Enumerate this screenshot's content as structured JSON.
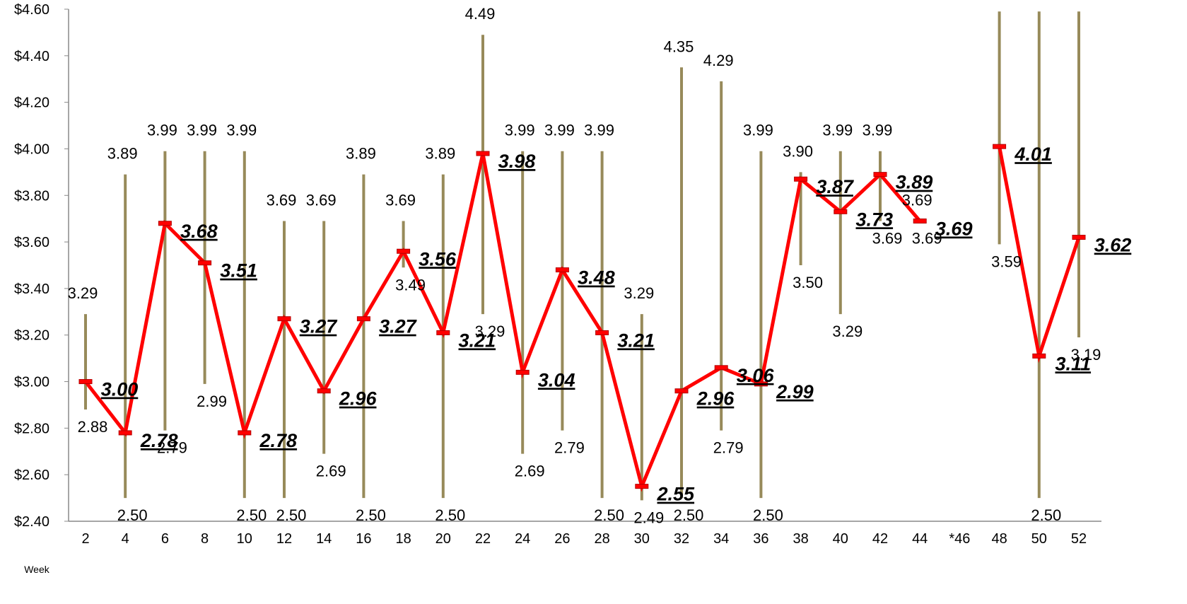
{
  "chart_data": {
    "type": "line",
    "xlabel": "Week",
    "ylabel": "",
    "ylim": [
      2.4,
      4.6
    ],
    "y_tick_step": 0.2,
    "y_tick_prefix": "$",
    "grid": false,
    "categories": [
      "2",
      "4",
      "6",
      "8",
      "10",
      "12",
      "14",
      "16",
      "18",
      "20",
      "22",
      "24",
      "26",
      "28",
      "30",
      "32",
      "34",
      "36",
      "38",
      "40",
      "42",
      "44",
      "*46",
      "48",
      "50",
      "52"
    ],
    "series": [
      {
        "values": [
          3.0,
          2.78,
          3.68,
          3.51,
          2.78,
          3.27,
          2.96,
          3.27,
          3.56,
          3.21,
          3.98,
          3.04,
          3.48,
          3.21,
          2.55,
          2.96,
          3.06,
          2.99,
          3.87,
          3.73,
          3.89,
          3.69,
          null,
          4.01,
          3.11,
          3.62
        ],
        "labels": [
          "3.00",
          "2.78",
          "3.68",
          "3.51",
          "2.78",
          "3.27",
          "2.96",
          "3.27",
          "3.56",
          "3.21",
          "3.98",
          "3.04",
          "3.48",
          "3.21",
          "2.55",
          "2.96",
          "3.06",
          "2.99",
          "3.87",
          "3.73",
          "3.89",
          "3.69",
          "",
          "4.01",
          "3.11",
          "3.62"
        ]
      }
    ],
    "high": [
      3.29,
      3.89,
      3.99,
      3.99,
      3.99,
      3.69,
      3.69,
      3.89,
      3.69,
      3.89,
      4.49,
      3.99,
      3.99,
      3.99,
      3.29,
      4.35,
      4.29,
      3.99,
      3.9,
      3.99,
      3.99,
      3.69,
      null,
      4.59,
      4.59,
      4.59
    ],
    "high_labels": [
      "3.29",
      "3.89",
      "3.99",
      "3.99",
      "3.99",
      "3.69",
      "3.69",
      "3.89",
      "3.69",
      "3.89",
      "4.49",
      "3.99",
      "3.99",
      "3.99",
      "3.29",
      "4.35",
      "4.29",
      "3.99",
      "3.90",
      "3.99",
      "3.99",
      "3.69",
      "",
      "4.59",
      "",
      ""
    ],
    "low": [
      2.88,
      2.5,
      2.79,
      2.99,
      2.5,
      2.5,
      2.69,
      2.5,
      3.49,
      2.5,
      3.29,
      2.69,
      2.79,
      2.5,
      2.49,
      2.5,
      2.79,
      2.5,
      3.5,
      3.29,
      3.69,
      3.69,
      null,
      3.59,
      2.5,
      3.19
    ],
    "low_labels": [
      "2.88",
      "2.50",
      "2.79",
      "2.99",
      "2.50",
      "2.50",
      "2.69",
      "2.50",
      "3.49",
      "2.50",
      "3.29",
      "2.69",
      "2.79",
      "2.50",
      "2.49",
      "2.50",
      "2.79",
      "2.50",
      "3.50",
      "3.29",
      "3.69",
      "3.69",
      "",
      "3.59",
      "2.50",
      "3.19"
    ],
    "colors": {
      "line": "#ff0000",
      "range_bar": "#978a5a",
      "axis": "#888888"
    }
  }
}
